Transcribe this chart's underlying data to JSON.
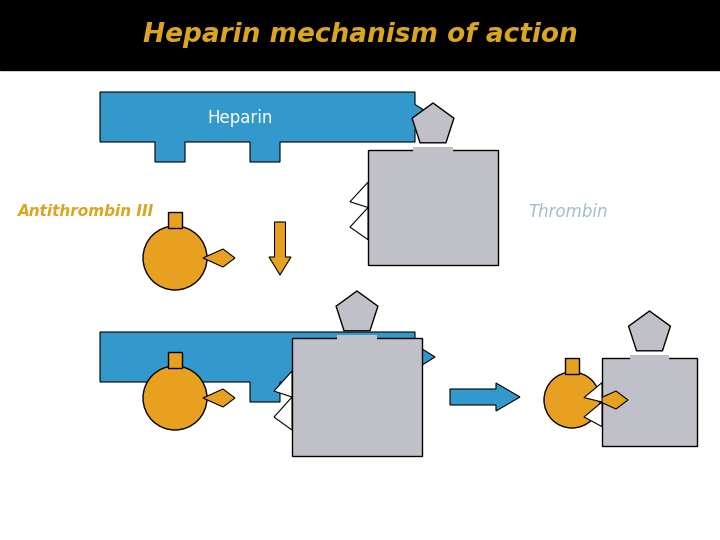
{
  "title": "Heparin mechanism of action",
  "title_color": "#DAA520",
  "title_bg": "#000000",
  "label_antithrombin": "Antithrombin III",
  "label_thrombin": "Thrombin",
  "label_heparin": "Heparin",
  "color_blue": "#3399CC",
  "color_gray": "#C0C0C8",
  "color_orange": "#E8A020",
  "color_white": "#FFFFFF",
  "color_black": "#000000",
  "color_antithrombin_label": "#DAA520",
  "color_thrombin_label": "#A0C0C8",
  "bg_color": "#FFFFFF"
}
